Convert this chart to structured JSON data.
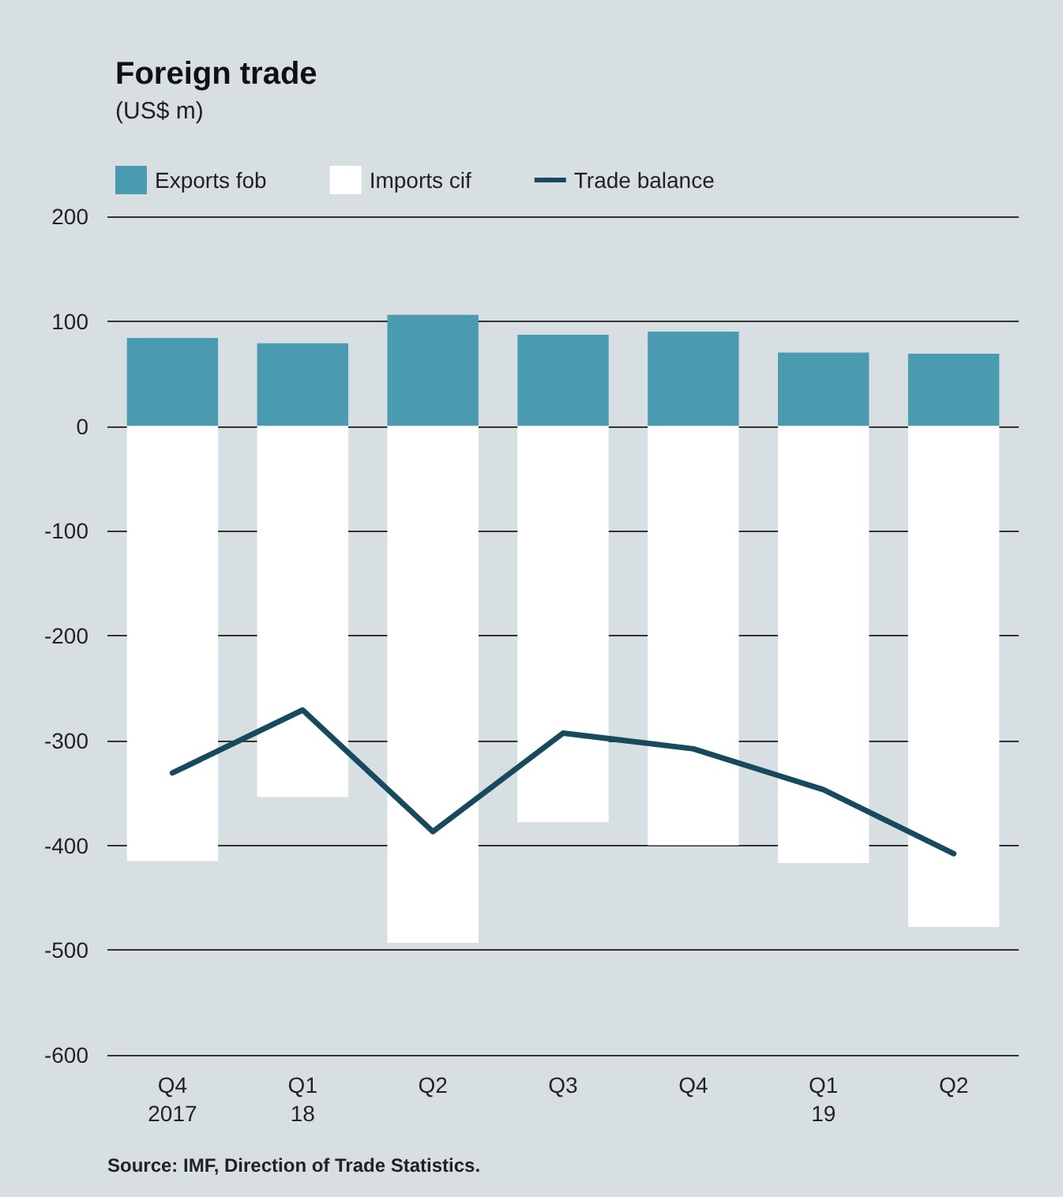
{
  "chart_data": {
    "type": "bar",
    "title": "Foreign trade",
    "subtitle": "(US$ m)",
    "categories": [
      "Q4\n2017",
      "Q1\n18",
      "Q2",
      "Q3",
      "Q4",
      "Q1\n19",
      "Q2"
    ],
    "series": [
      {
        "name": "Exports fob",
        "color": "#4a9bb0",
        "values": [
          84,
          79,
          106,
          87,
          90,
          70,
          69
        ]
      },
      {
        "name": "Imports cif",
        "color": "#ffffff",
        "values": [
          -415,
          -354,
          -493,
          -378,
          -400,
          -417,
          -478
        ]
      },
      {
        "name": "Trade balance",
        "type": "line",
        "color": "#174a5c",
        "values": [
          -331,
          -271,
          -387,
          -293,
          -308,
          -347,
          -408
        ]
      }
    ],
    "ylim": [
      -600,
      200
    ],
    "yticks": [
      -600,
      -500,
      -400,
      -300,
      -200,
      -100,
      0,
      100,
      200
    ],
    "stacked": true,
    "grid": "y",
    "legend": "top left",
    "marker": "none",
    "line_style": "solid",
    "annotations": [
      "Source: IMF, Direction of Trade Statistics."
    ]
  }
}
